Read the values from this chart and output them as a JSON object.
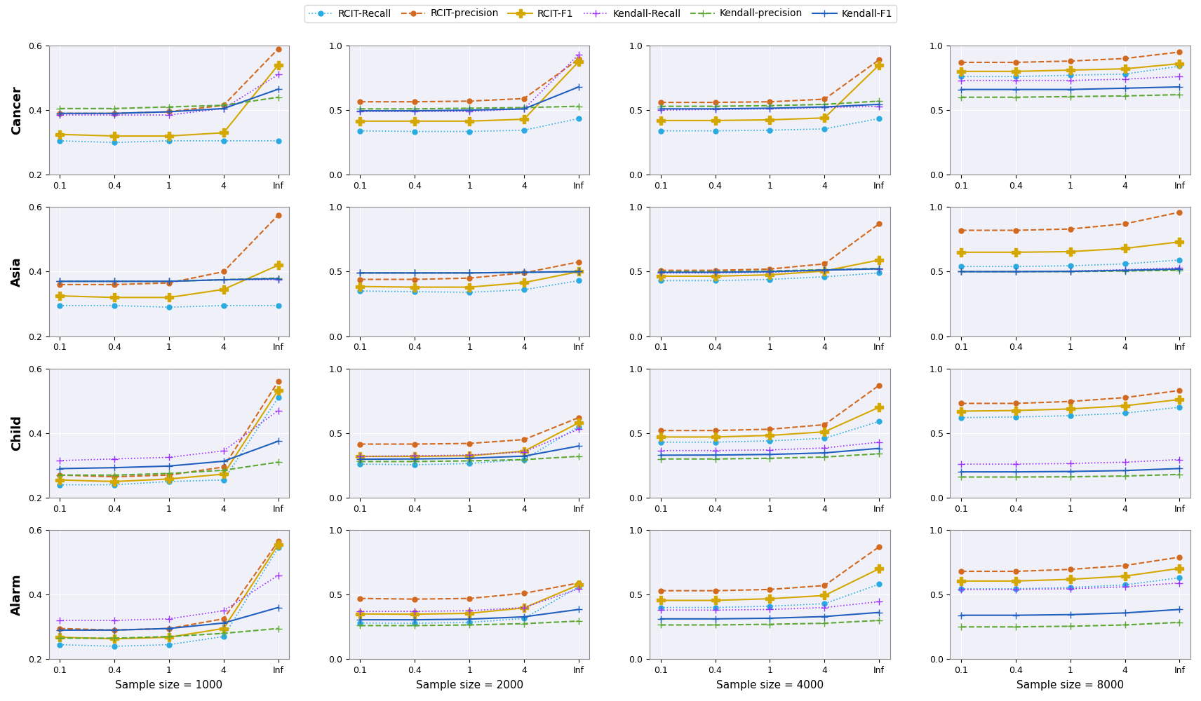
{
  "x_labels": [
    "0.1",
    "0.4",
    "1",
    "4",
    "Inf"
  ],
  "x_values": [
    0,
    1,
    2,
    3,
    4
  ],
  "rows": [
    "Cancer",
    "Asia",
    "Child",
    "Alarm"
  ],
  "cols": [
    "Sample size = 1000",
    "Sample size = 2000",
    "Sample size = 4000",
    "Sample size = 8000"
  ],
  "series": [
    "RCIT-Recall",
    "RCIT-precision",
    "RCIT-F1",
    "Kendall-Recall",
    "Kendall-precision",
    "Kendall-F1"
  ],
  "colors": [
    "#29ABE2",
    "#D2691E",
    "#D4A800",
    "#9B30FF",
    "#5BA832",
    "#1F5FBF"
  ],
  "linestyles": [
    "dotted",
    "dashed",
    "solid",
    "dotted",
    "dashed",
    "solid"
  ],
  "markers": [
    "o",
    "o",
    "+",
    "+",
    "+",
    "+"
  ],
  "markersizes": [
    5,
    5,
    7,
    7,
    7,
    7
  ],
  "ylims": {
    "col0": [
      0.2,
      0.6
    ],
    "col1": [
      0.0,
      1.0
    ],
    "col2": [
      0.0,
      1.0
    ],
    "col3": [
      0.0,
      1.0
    ]
  },
  "yticks": {
    "col0": [
      0.2,
      0.4,
      0.6
    ],
    "col1": [
      0,
      0.5,
      1
    ],
    "col2": [
      0,
      0.5,
      1
    ],
    "col3": [
      0,
      0.5,
      1
    ]
  },
  "data": {
    "Cancer": {
      "col0": {
        "RCIT-Recall": [
          0.305,
          0.3,
          0.305,
          0.305,
          0.305
        ],
        "RCIT-precision": [
          0.39,
          0.39,
          0.395,
          0.415,
          0.59
        ],
        "RCIT-F1": [
          0.325,
          0.32,
          0.32,
          0.33,
          0.54
        ],
        "Kendall-Recall": [
          0.385,
          0.385,
          0.385,
          0.405,
          0.51
        ],
        "Kendall-precision": [
          0.405,
          0.405,
          0.41,
          0.415,
          0.44
        ],
        "Kendall-F1": [
          0.39,
          0.39,
          0.395,
          0.405,
          0.465
        ]
      },
      "col1": {
        "RCIT-Recall": [
          0.34,
          0.335,
          0.335,
          0.345,
          0.435
        ],
        "RCIT-precision": [
          0.565,
          0.565,
          0.57,
          0.59,
          0.895
        ],
        "RCIT-F1": [
          0.415,
          0.415,
          0.415,
          0.43,
          0.875
        ],
        "Kendall-Recall": [
          0.49,
          0.49,
          0.49,
          0.51,
          0.93
        ],
        "Kendall-precision": [
          0.51,
          0.51,
          0.515,
          0.52,
          0.53
        ],
        "Kendall-F1": [
          0.495,
          0.495,
          0.5,
          0.51,
          0.68
        ]
      },
      "col2": {
        "RCIT-Recall": [
          0.34,
          0.34,
          0.345,
          0.355,
          0.435
        ],
        "RCIT-precision": [
          0.56,
          0.56,
          0.565,
          0.585,
          0.89
        ],
        "RCIT-F1": [
          0.42,
          0.42,
          0.425,
          0.44,
          0.85
        ],
        "Kendall-Recall": [
          0.5,
          0.505,
          0.51,
          0.52,
          0.53
        ],
        "Kendall-precision": [
          0.53,
          0.53,
          0.535,
          0.545,
          0.57
        ],
        "Kendall-F1": [
          0.51,
          0.51,
          0.515,
          0.525,
          0.545
        ]
      },
      "col3": {
        "RCIT-Recall": [
          0.76,
          0.76,
          0.77,
          0.78,
          0.84
        ],
        "RCIT-precision": [
          0.87,
          0.87,
          0.88,
          0.9,
          0.95
        ],
        "RCIT-F1": [
          0.8,
          0.8,
          0.81,
          0.82,
          0.86
        ],
        "Kendall-Recall": [
          0.73,
          0.73,
          0.73,
          0.74,
          0.76
        ],
        "Kendall-precision": [
          0.6,
          0.6,
          0.605,
          0.61,
          0.62
        ],
        "Kendall-F1": [
          0.66,
          0.66,
          0.66,
          0.67,
          0.68
        ]
      }
    },
    "Asia": {
      "col0": {
        "RCIT-Recall": [
          0.295,
          0.295,
          0.29,
          0.295,
          0.295
        ],
        "RCIT-precision": [
          0.36,
          0.36,
          0.365,
          0.4,
          0.575
        ],
        "RCIT-F1": [
          0.325,
          0.32,
          0.32,
          0.345,
          0.42
        ],
        "Kendall-Recall": [
          0.37,
          0.37,
          0.37,
          0.375,
          0.375
        ],
        "Kendall-precision": [
          0.37,
          0.37,
          0.37,
          0.375,
          0.38
        ],
        "Kendall-F1": [
          0.37,
          0.37,
          0.37,
          0.375,
          0.378
        ]
      },
      "col1": {
        "RCIT-Recall": [
          0.35,
          0.345,
          0.34,
          0.36,
          0.43
        ],
        "RCIT-precision": [
          0.44,
          0.44,
          0.45,
          0.49,
          0.575
        ],
        "RCIT-F1": [
          0.385,
          0.38,
          0.38,
          0.415,
          0.5
        ],
        "Kendall-Recall": [
          0.49,
          0.49,
          0.49,
          0.495,
          0.5
        ],
        "Kendall-precision": [
          0.49,
          0.49,
          0.49,
          0.495,
          0.5
        ],
        "Kendall-F1": [
          0.49,
          0.49,
          0.49,
          0.495,
          0.5
        ]
      },
      "col2": {
        "RCIT-Recall": [
          0.43,
          0.43,
          0.44,
          0.46,
          0.49
        ],
        "RCIT-precision": [
          0.51,
          0.51,
          0.52,
          0.56,
          0.87
        ],
        "RCIT-F1": [
          0.465,
          0.465,
          0.475,
          0.505,
          0.59
        ],
        "Kendall-Recall": [
          0.49,
          0.49,
          0.495,
          0.51,
          0.52
        ],
        "Kendall-precision": [
          0.5,
          0.5,
          0.505,
          0.515,
          0.525
        ],
        "Kendall-F1": [
          0.495,
          0.495,
          0.5,
          0.512,
          0.522
        ]
      },
      "col3": {
        "RCIT-Recall": [
          0.54,
          0.54,
          0.545,
          0.56,
          0.59
        ],
        "RCIT-precision": [
          0.82,
          0.82,
          0.83,
          0.87,
          0.96
        ],
        "RCIT-F1": [
          0.65,
          0.65,
          0.655,
          0.68,
          0.73
        ],
        "Kendall-Recall": [
          0.5,
          0.5,
          0.505,
          0.515,
          0.53
        ],
        "Kendall-precision": [
          0.5,
          0.5,
          0.5,
          0.505,
          0.51
        ],
        "Kendall-F1": [
          0.5,
          0.5,
          0.502,
          0.51,
          0.52
        ]
      }
    },
    "Child": {
      "col0": {
        "RCIT-Recall": [
          0.24,
          0.24,
          0.25,
          0.255,
          0.51
        ],
        "RCIT-precision": [
          0.27,
          0.265,
          0.27,
          0.295,
          0.56
        ],
        "RCIT-F1": [
          0.255,
          0.25,
          0.258,
          0.273,
          0.533
        ],
        "Kendall-Recall": [
          0.315,
          0.32,
          0.325,
          0.345,
          0.47
        ],
        "Kendall-precision": [
          0.27,
          0.27,
          0.275,
          0.285,
          0.31
        ],
        "Kendall-F1": [
          0.29,
          0.293,
          0.298,
          0.313,
          0.375
        ]
      },
      "col1": {
        "RCIT-Recall": [
          0.26,
          0.255,
          0.265,
          0.295,
          0.55
        ],
        "RCIT-precision": [
          0.415,
          0.415,
          0.42,
          0.45,
          0.62
        ],
        "RCIT-F1": [
          0.32,
          0.32,
          0.325,
          0.36,
          0.58
        ],
        "Kendall-Recall": [
          0.32,
          0.325,
          0.33,
          0.355,
          0.53
        ],
        "Kendall-precision": [
          0.28,
          0.28,
          0.285,
          0.295,
          0.32
        ],
        "Kendall-F1": [
          0.298,
          0.3,
          0.305,
          0.322,
          0.4
        ]
      },
      "col2": {
        "RCIT-Recall": [
          0.43,
          0.43,
          0.44,
          0.46,
          0.59
        ],
        "RCIT-precision": [
          0.52,
          0.52,
          0.53,
          0.565,
          0.87
        ],
        "RCIT-F1": [
          0.47,
          0.47,
          0.482,
          0.51,
          0.7
        ],
        "Kendall-Recall": [
          0.365,
          0.365,
          0.37,
          0.385,
          0.43
        ],
        "Kendall-precision": [
          0.3,
          0.3,
          0.305,
          0.315,
          0.34
        ],
        "Kendall-F1": [
          0.329,
          0.33,
          0.335,
          0.347,
          0.382
        ]
      },
      "col3": {
        "RCIT-Recall": [
          0.62,
          0.625,
          0.635,
          0.655,
          0.7
        ],
        "RCIT-precision": [
          0.73,
          0.73,
          0.745,
          0.775,
          0.83
        ],
        "RCIT-F1": [
          0.67,
          0.675,
          0.687,
          0.712,
          0.76
        ],
        "Kendall-Recall": [
          0.26,
          0.26,
          0.265,
          0.275,
          0.295
        ],
        "Kendall-precision": [
          0.16,
          0.16,
          0.162,
          0.168,
          0.18
        ],
        "Kendall-F1": [
          0.2,
          0.2,
          0.203,
          0.21,
          0.226
        ]
      }
    },
    "Alarm": {
      "col0": {
        "RCIT-Recall": [
          0.245,
          0.24,
          0.245,
          0.27,
          0.545
        ],
        "RCIT-precision": [
          0.295,
          0.29,
          0.295,
          0.325,
          0.565
        ],
        "RCIT-F1": [
          0.268,
          0.263,
          0.268,
          0.295,
          0.555
        ],
        "Kendall-Recall": [
          0.32,
          0.32,
          0.325,
          0.35,
          0.46
        ],
        "Kendall-precision": [
          0.265,
          0.265,
          0.27,
          0.28,
          0.295
        ],
        "Kendall-F1": [
          0.29,
          0.29,
          0.295,
          0.312,
          0.36
        ]
      },
      "col1": {
        "RCIT-Recall": [
          0.28,
          0.278,
          0.285,
          0.315,
          0.56
        ],
        "RCIT-precision": [
          0.47,
          0.465,
          0.47,
          0.51,
          0.59
        ],
        "RCIT-F1": [
          0.35,
          0.348,
          0.355,
          0.397,
          0.575
        ],
        "Kendall-Recall": [
          0.37,
          0.37,
          0.375,
          0.4,
          0.545
        ],
        "Kendall-precision": [
          0.26,
          0.26,
          0.265,
          0.275,
          0.295
        ],
        "Kendall-F1": [
          0.305,
          0.305,
          0.31,
          0.328,
          0.385
        ]
      },
      "col2": {
        "RCIT-Recall": [
          0.4,
          0.4,
          0.41,
          0.43,
          0.58
        ],
        "RCIT-precision": [
          0.53,
          0.53,
          0.54,
          0.57,
          0.87
        ],
        "RCIT-F1": [
          0.455,
          0.455,
          0.468,
          0.493,
          0.7
        ],
        "Kendall-Recall": [
          0.38,
          0.38,
          0.385,
          0.4,
          0.445
        ],
        "Kendall-precision": [
          0.265,
          0.265,
          0.27,
          0.278,
          0.3
        ],
        "Kendall-F1": [
          0.312,
          0.312,
          0.317,
          0.33,
          0.362
        ]
      },
      "col3": {
        "RCIT-Recall": [
          0.545,
          0.545,
          0.555,
          0.575,
          0.63
        ],
        "RCIT-precision": [
          0.68,
          0.68,
          0.695,
          0.725,
          0.79
        ],
        "RCIT-F1": [
          0.605,
          0.605,
          0.618,
          0.643,
          0.703
        ],
        "Kendall-Recall": [
          0.54,
          0.54,
          0.545,
          0.56,
          0.59
        ],
        "Kendall-precision": [
          0.25,
          0.25,
          0.255,
          0.265,
          0.285
        ],
        "Kendall-F1": [
          0.34,
          0.34,
          0.345,
          0.358,
          0.385
        ]
      }
    }
  }
}
